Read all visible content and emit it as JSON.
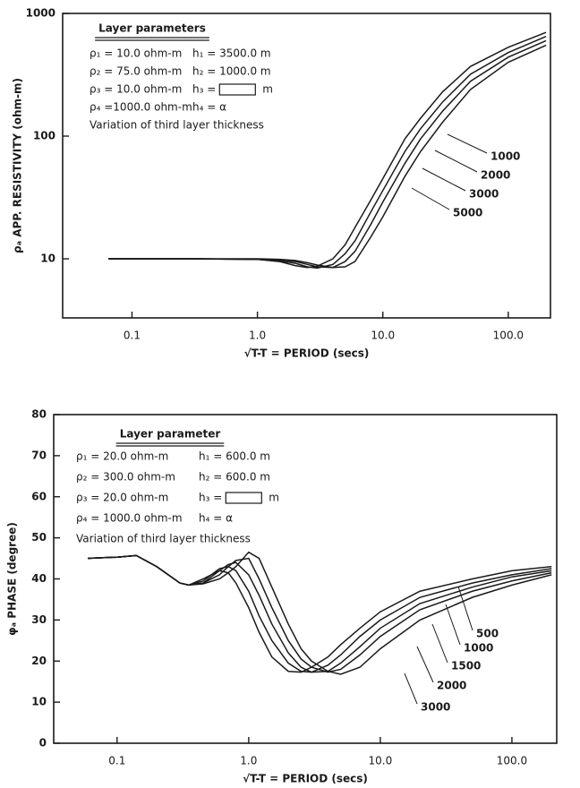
{
  "chart_data": [
    {
      "type": "line",
      "xlabel": "√T-T = PERIOD (secs)",
      "ylabel": "ρₐ APP. RESISTIVITY (ohm-m)",
      "box_title": "Layer parameters",
      "parameters": [
        {
          "rho": "ρ₁ =  10.0 ohm-m",
          "h": "h₁ = 3500.0 m"
        },
        {
          "rho": "ρ₂ =  75.0 ohm-m",
          "h": "h₂ = 1000.0 m"
        },
        {
          "rho": "ρ₃ =  10.0 ohm-m",
          "h": "h₃ =",
          "unit": "m"
        },
        {
          "rho": "ρ₄ =1000.0 ohm-m",
          "h": "h₄ = α"
        }
      ],
      "note": "Variation of third layer thickness",
      "xlog": true,
      "ylog": true,
      "xlim": [
        0.028,
        217
      ],
      "ylim": [
        3.3,
        1000
      ],
      "xticks": [
        {
          "value": 0.1,
          "label": "0.1"
        },
        {
          "value": 1,
          "label": "1.0"
        },
        {
          "value": 10,
          "label": "10.0"
        },
        {
          "value": 100,
          "label": "100.0"
        }
      ],
      "yticks": [
        10,
        100,
        1000
      ],
      "x": [
        0.065,
        0.3,
        1,
        1.5,
        2,
        2.5,
        3,
        4,
        5,
        6,
        8,
        10,
        15,
        20,
        30,
        50,
        100,
        200
      ],
      "series": [
        {
          "name": "1000",
          "color": "#1a1a1a",
          "values": [
            10,
            10,
            9.9,
            9.5,
            8.8,
            8.5,
            8.7,
            10,
            13,
            18,
            30,
            45,
            95,
            140,
            230,
            370,
            530,
            700
          ]
        },
        {
          "name": "2000",
          "color": "#1a1a1a",
          "values": [
            10,
            10,
            9.9,
            9.6,
            9.2,
            8.6,
            8.4,
            9,
            11,
            14,
            24,
            36,
            75,
            115,
            190,
            320,
            480,
            650
          ]
        },
        {
          "name": "3000",
          "color": "#1a1a1a",
          "values": [
            10,
            10,
            9.9,
            9.8,
            9.5,
            9.0,
            8.6,
            8.5,
            9.5,
            11.5,
            19,
            29,
            60,
            95,
            160,
            280,
            440,
            600
          ]
        },
        {
          "name": "5000",
          "color": "#1a1a1a",
          "values": [
            10,
            10,
            10,
            9.9,
            9.7,
            9.3,
            8.9,
            8.5,
            8.6,
            9.5,
            15,
            22,
            47,
            75,
            130,
            240,
            400,
            550
          ]
        }
      ]
    },
    {
      "type": "line",
      "xlabel": "√T-T = PERIOD (secs)",
      "ylabel": "φₐ PHASE (degree)",
      "box_title": "Layer parameter",
      "parameters": [
        {
          "rho": "ρ₁ =  20.0 ohm-m",
          "h": "h₁ = 600.0 m"
        },
        {
          "rho": "ρ₂ = 300.0 ohm-m",
          "h": "h₂ = 600.0 m"
        },
        {
          "rho": "ρ₃ =  20.0 ohm-m",
          "h": "h₃ =",
          "unit": "m"
        },
        {
          "rho": "ρ₄ = 1000.0 ohm-m",
          "h": "h₄ = α"
        }
      ],
      "note": "Variation of third layer thickness",
      "xlog": true,
      "ylog": false,
      "xlim": [
        0.033,
        219
      ],
      "ylim": [
        0,
        80
      ],
      "xticks": [
        {
          "value": 0.1,
          "label": "0.1"
        },
        {
          "value": 1,
          "label": "1.0"
        },
        {
          "value": 10,
          "label": "10.0"
        },
        {
          "value": 100,
          "label": "100.0"
        }
      ],
      "yticks": [
        0,
        10,
        20,
        30,
        40,
        50,
        60,
        70,
        80
      ],
      "x": [
        0.06,
        0.1,
        0.14,
        0.2,
        0.3,
        0.35,
        0.45,
        0.6,
        0.7,
        0.8,
        1.0,
        1.2,
        1.5,
        2,
        2.5,
        3,
        4,
        5,
        7,
        10,
        20,
        50,
        100,
        200
      ],
      "series": [
        {
          "name": "500",
          "color": "#1a1a1a",
          "values": [
            45,
            45.3,
            45.7,
            43,
            39,
            38.5,
            40,
            42,
            41.5,
            39,
            33,
            27,
            21,
            17.5,
            17.3,
            18.5,
            21,
            24,
            28,
            32,
            37,
            40,
            42,
            43
          ]
        },
        {
          "name": "1000",
          "color": "#1a1a1a",
          "values": [
            45,
            45.3,
            45.7,
            43,
            39,
            38.5,
            39.5,
            42.5,
            43,
            42,
            37,
            31,
            25,
            19.5,
            17.5,
            17.3,
            19,
            21.5,
            26,
            30,
            35.5,
            39,
            41,
            42.5
          ]
        },
        {
          "name": "1500",
          "color": "#1a1a1a",
          "values": [
            45,
            45.3,
            45.7,
            43,
            39,
            38.5,
            39,
            42,
            43.5,
            44,
            41,
            36,
            29,
            22,
            18.5,
            17.3,
            17.5,
            19.5,
            23.5,
            28,
            34,
            38,
            40.5,
            42
          ]
        },
        {
          "name": "2000",
          "color": "#1a1a1a",
          "values": [
            45,
            45.3,
            45.7,
            43,
            39,
            38.5,
            39,
            41,
            43,
            44.5,
            45,
            40,
            33,
            25,
            20.5,
            18.5,
            17.3,
            18,
            21.5,
            26,
            32.5,
            37,
            39.5,
            41.5
          ]
        },
        {
          "name": "3000",
          "color": "#1a1a1a",
          "values": [
            45,
            45.3,
            45.7,
            43,
            39,
            38.5,
            38.8,
            40,
            41.5,
            43,
            46.5,
            45,
            38,
            29,
            23,
            20,
            17.5,
            16.8,
            18.5,
            23,
            30,
            35.5,
            38.5,
            41
          ]
        }
      ]
    }
  ]
}
